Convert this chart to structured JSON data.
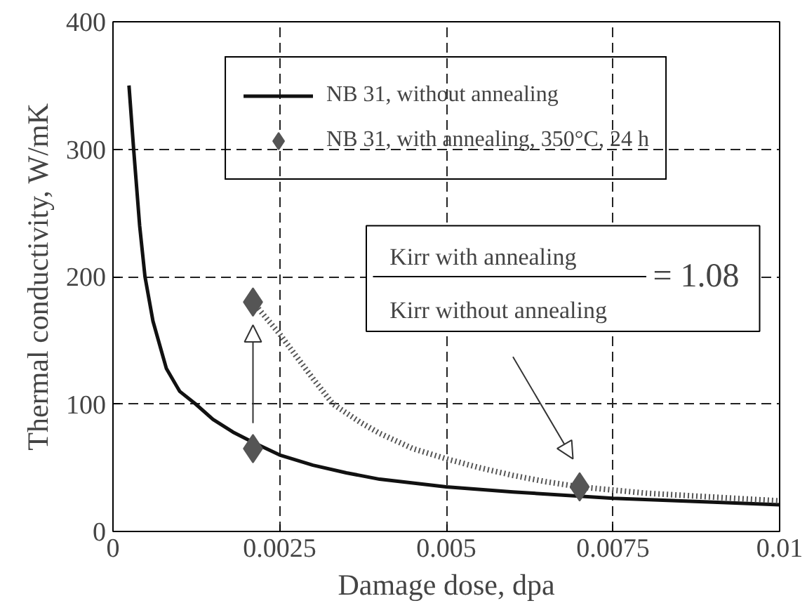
{
  "chart_data": {
    "type": "line",
    "xlabel": "Damage dose, dpa",
    "ylabel": "Thermal conductivity, W/mK",
    "xlim": [
      0,
      0.01
    ],
    "ylim": [
      0,
      400
    ],
    "xticks": [
      0,
      0.0025,
      0.005,
      0.0075,
      0.01
    ],
    "yticks": [
      0,
      100,
      200,
      300,
      400
    ],
    "grid": true,
    "legend": "top",
    "series": [
      {
        "name": "NB 31, without annealing",
        "color": "#111111",
        "line_style": "solid",
        "x": [
          0.00024,
          0.00031,
          0.0004,
          0.00048,
          0.0006,
          0.0008,
          0.001,
          0.00124,
          0.0015,
          0.0018,
          0.0021,
          0.0025,
          0.003,
          0.0035,
          0.004,
          0.005,
          0.006,
          0.0075,
          0.009,
          0.01
        ],
        "values": [
          350,
          300,
          240,
          200,
          165,
          128,
          110,
          100,
          88,
          78,
          70,
          60,
          52,
          46,
          41,
          35,
          31,
          26,
          23,
          21
        ]
      },
      {
        "color": "#555555",
        "line_style": "dotted",
        "x": [
          0.0021,
          0.0025,
          0.003,
          0.0033,
          0.0037,
          0.004,
          0.0045,
          0.005,
          0.0055,
          0.006,
          0.0065,
          0.007,
          0.008,
          0.009,
          0.01
        ],
        "values": [
          180,
          155,
          120,
          100,
          86,
          77,
          65,
          57,
          50,
          44,
          39,
          35,
          30,
          27,
          24
        ]
      },
      {
        "name": "NB 31, with annealing, 350°C, 24 h",
        "type": "scatter",
        "color": "#555555",
        "marker": "diamond",
        "x": [
          0.0021,
          0.0021,
          0.007
        ],
        "values": [
          65,
          180,
          35
        ]
      }
    ],
    "annotations": [
      "Kirr with annealing",
      "Kirr without annealing",
      "= 1.08"
    ]
  }
}
